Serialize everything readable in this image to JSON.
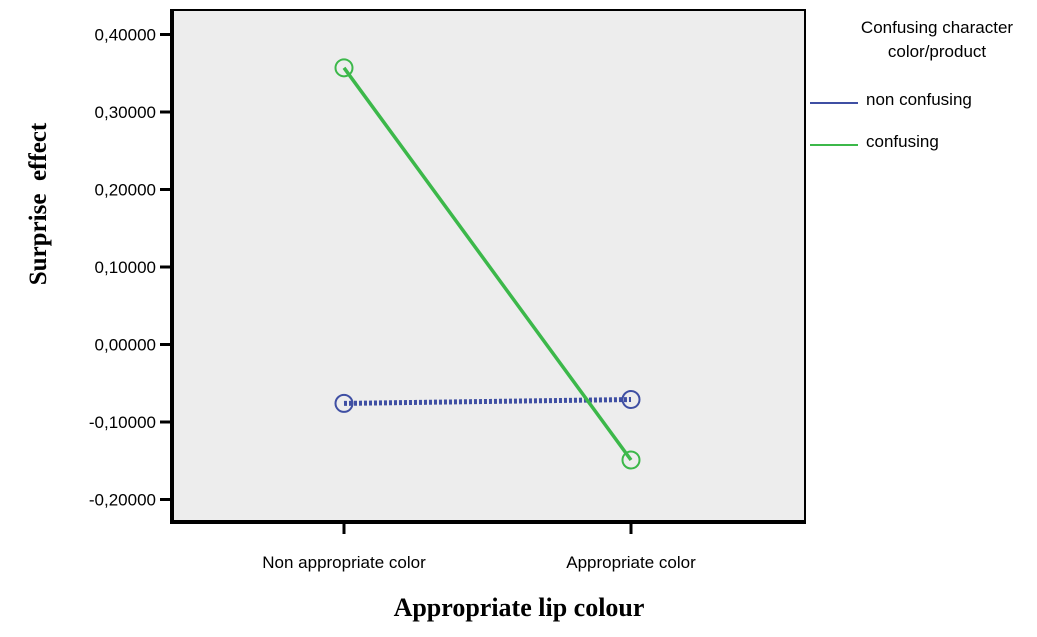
{
  "chart_data": {
    "type": "line",
    "title": "",
    "xlabel": "Appropriate lip colour",
    "ylabel": "Surprise  effect",
    "categories": [
      "Non appropriate color",
      "Appropriate color"
    ],
    "ylim": [
      -0.23,
      0.43
    ],
    "yticks": [
      0.4,
      0.3,
      0.2,
      0.1,
      0.0,
      -0.1,
      -0.2
    ],
    "ytick_labels": [
      "0,40000",
      "0,30000",
      "0,20000",
      "0,10000",
      "0,00000",
      "-0,10000",
      "-0,20000"
    ],
    "legend_title": "Confusing character color/product",
    "legend_title_lines": [
      "Confusing character",
      "color/product"
    ],
    "legend_position": "right",
    "grid": false,
    "plot_background": "#ededed",
    "series": [
      {
        "name": "non confusing",
        "color": "#3f4fa3",
        "dashed": true,
        "values": [
          -0.076,
          -0.071
        ]
      },
      {
        "name": "confusing",
        "color": "#3cb84a",
        "dashed": false,
        "values": [
          0.357,
          -0.149
        ]
      }
    ]
  }
}
